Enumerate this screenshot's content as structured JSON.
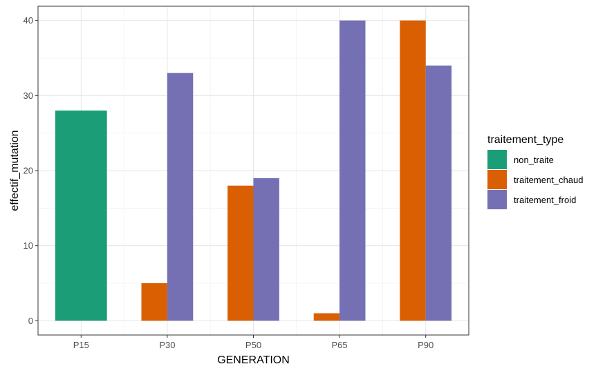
{
  "chart_data": {
    "type": "bar",
    "title": "",
    "xlabel": "GENERATION",
    "ylabel": "effectif_mutation",
    "categories": [
      "P15",
      "P30",
      "P50",
      "P65",
      "P90"
    ],
    "ylim": [
      -1.9,
      41.9
    ],
    "yticks": [
      0,
      10,
      20,
      30,
      40
    ],
    "grid": true,
    "legend_position": "right",
    "legend_title": "traitement_type",
    "series": [
      {
        "name": "non_traite",
        "color": "#1B9E77",
        "values": [
          28,
          null,
          null,
          null,
          null
        ]
      },
      {
        "name": "traitement_chaud",
        "color": "#D95F02",
        "values": [
          null,
          5,
          18,
          1,
          40
        ]
      },
      {
        "name": "traitement_froid",
        "color": "#7570B3",
        "values": [
          null,
          33,
          19,
          40,
          34
        ]
      }
    ]
  }
}
